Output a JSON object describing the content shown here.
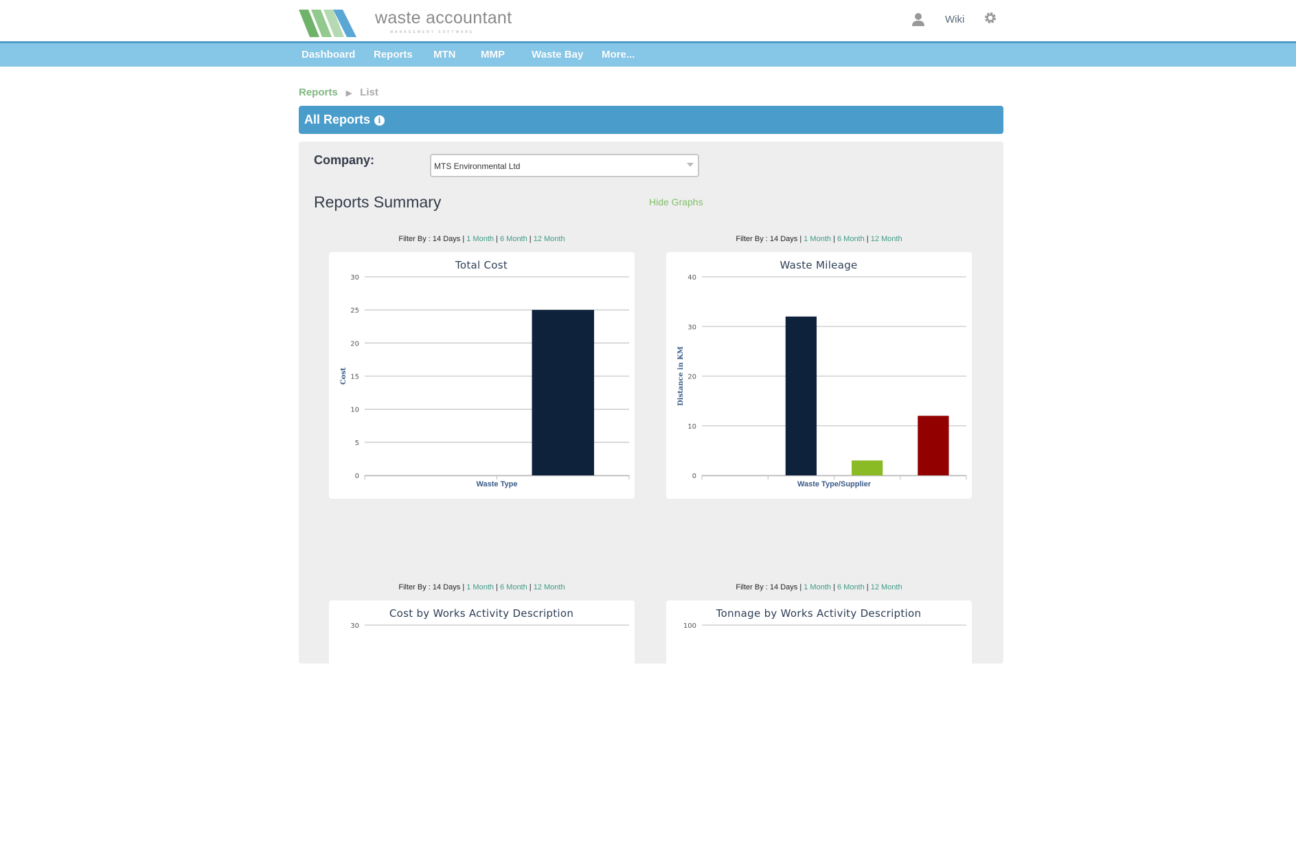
{
  "header": {
    "brand": "waste accountant",
    "brand_sub": "MANAGEMENT SOFTWARE",
    "wiki": "Wiki",
    "icons": [
      "user-icon",
      "gear-icon"
    ]
  },
  "nav": [
    {
      "label": "Dashboard"
    },
    {
      "label": "Reports"
    },
    {
      "label": "MTN"
    },
    {
      "label": "MMP"
    },
    {
      "label": "Waste Bay"
    },
    {
      "label": "More..."
    }
  ],
  "breadcrumb": {
    "root": "Reports",
    "current": "List"
  },
  "section": {
    "title": "All Reports"
  },
  "company": {
    "label": "Company:",
    "value": "MTS Environmental Ltd"
  },
  "summary": {
    "title": "Reports Summary",
    "hide": "Hide Graphs"
  },
  "filter": {
    "prefix": "Filter By :",
    "active": "14 Days",
    "options": [
      "1 Month",
      "6 Month",
      "12 Month"
    ]
  },
  "colors": {
    "nav": "#86c7e8",
    "bar": "#4a9dcb",
    "navy": "#0e233b",
    "green": "#8aba24",
    "red": "#920000"
  },
  "chart_data": [
    {
      "type": "bar",
      "title": "Total Cost",
      "xlabel": "Waste Type",
      "ylabel": "Cost",
      "ylim": [
        0,
        30
      ],
      "yticks": [
        0,
        5,
        10,
        15,
        20,
        25,
        30
      ],
      "categories": [
        "",
        ""
      ],
      "values": [
        0,
        25
      ],
      "colors": [
        "#0e233b",
        "#0e233b"
      ],
      "grid": true
    },
    {
      "type": "bar",
      "title": "Waste Mileage",
      "xlabel": "Waste Type/Supplier",
      "ylabel": "Distance in KM",
      "ylim": [
        0,
        40
      ],
      "yticks": [
        0,
        10,
        20,
        30,
        40
      ],
      "categories": [
        "",
        "",
        "",
        ""
      ],
      "values": [
        0,
        32,
        3,
        12
      ],
      "colors": [
        "#0e233b",
        "#0e233b",
        "#8aba24",
        "#920000"
      ],
      "grid": true
    },
    {
      "type": "bar",
      "title": "Cost by Works Activity Description",
      "yticks": [
        30
      ],
      "ylim": [
        0,
        30
      ],
      "grid": true
    },
    {
      "type": "bar",
      "title": "Tonnage by Works Activity Description",
      "yticks": [
        100
      ],
      "ylim": [
        0,
        100
      ],
      "grid": true
    }
  ]
}
